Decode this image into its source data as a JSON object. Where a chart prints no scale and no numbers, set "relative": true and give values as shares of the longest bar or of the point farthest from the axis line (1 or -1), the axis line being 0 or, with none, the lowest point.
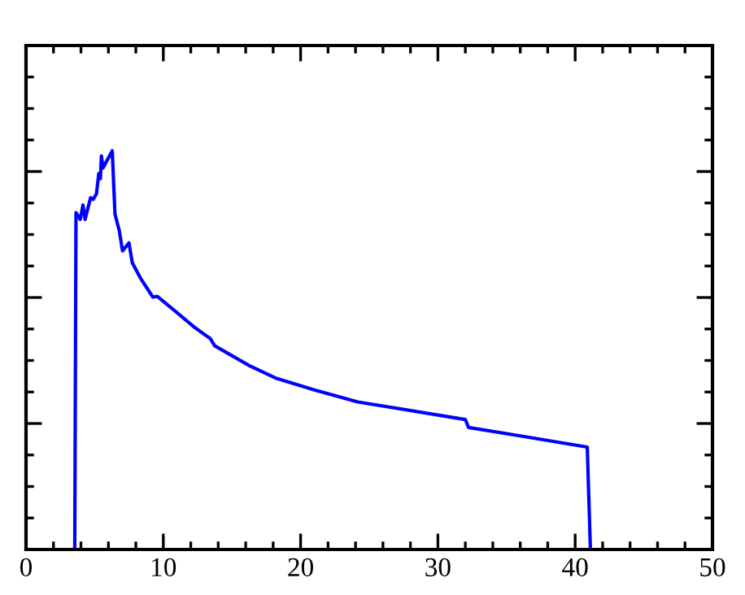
{
  "chart_data": {
    "type": "line",
    "relative": true,
    "xlim": [
      0,
      50
    ],
    "xticks": [
      0,
      10,
      20,
      30,
      40,
      50
    ],
    "x": [
      0,
      3.55,
      3.64,
      3.95,
      4.15,
      4.3,
      4.7,
      4.89,
      5.13,
      5.3,
      5.42,
      5.49,
      5.61,
      6.28,
      6.48,
      6.79,
      7.03,
      7.5,
      7.74,
      8.38,
      9.24,
      9.56,
      10.75,
      12.32,
      13.42,
      13.74,
      16.27,
      18.25,
      21.01,
      24.17,
      32.0,
      32.23,
      36.0,
      40.88,
      41.11,
      50
    ],
    "series": [
      {
        "color": "#0000ff",
        "values": [
          0,
          0,
          0.845,
          0.828,
          0.864,
          0.828,
          0.882,
          0.878,
          0.892,
          0.943,
          0.93,
          0.987,
          0.957,
          1.0,
          0.841,
          0.8,
          0.749,
          0.769,
          0.719,
          0.678,
          0.633,
          0.635,
          0.601,
          0.556,
          0.529,
          0.511,
          0.461,
          0.429,
          0.4,
          0.37,
          0.326,
          0.306,
          0.285,
          0.257,
          0,
          0
        ]
      }
    ],
    "grid": false,
    "legend": false,
    "marker": "none",
    "line_style": "solid"
  }
}
